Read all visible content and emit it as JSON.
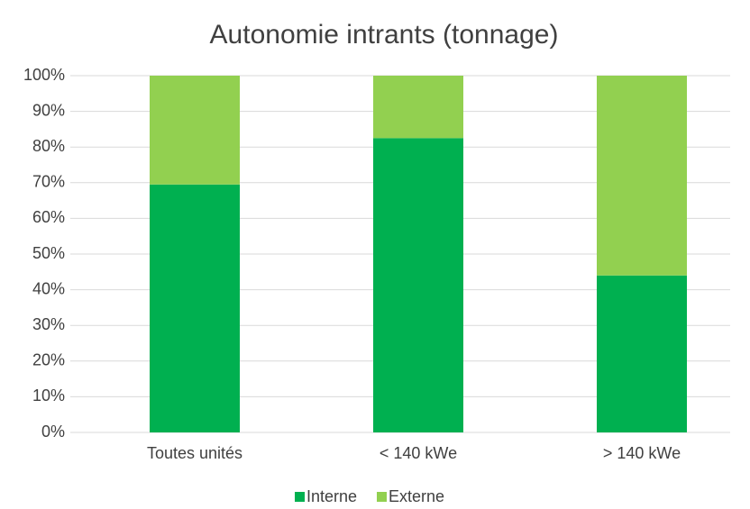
{
  "chart_data": {
    "type": "stacked_bar",
    "title": "Autonomie intrants (tonnage)",
    "categories": [
      "Toutes unités",
      "< 140 kWe",
      "> 140 kWe"
    ],
    "series": [
      {
        "name": "Interne",
        "color": "#00b050",
        "values": [
          69.5,
          82.5,
          44
        ]
      },
      {
        "name": "Externe",
        "color": "#92d050",
        "values": [
          30.5,
          17.5,
          56
        ]
      }
    ],
    "ylim": [
      0,
      100
    ],
    "yticks": [
      {
        "value": 0,
        "label": "0%"
      },
      {
        "value": 10,
        "label": "10%"
      },
      {
        "value": 20,
        "label": "20%"
      },
      {
        "value": 30,
        "label": "30%"
      },
      {
        "value": 40,
        "label": "40%"
      },
      {
        "value": 50,
        "label": "50%"
      },
      {
        "value": 60,
        "label": "60%"
      },
      {
        "value": 70,
        "label": "70%"
      },
      {
        "value": 80,
        "label": "80%"
      },
      {
        "value": 90,
        "label": "90%"
      },
      {
        "value": 100,
        "label": "100%"
      }
    ],
    "grid": true,
    "legend": "bottom"
  }
}
